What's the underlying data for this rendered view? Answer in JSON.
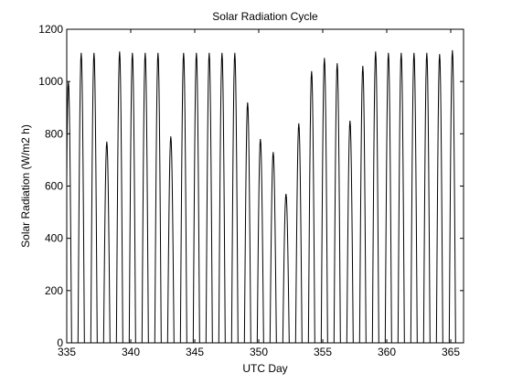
{
  "chart_data": {
    "type": "line",
    "title": "Solar Radiation Cycle",
    "xlabel": "UTC Day",
    "ylabel": "Solar Radiation (W/m2 h)",
    "xlim": [
      335,
      366
    ],
    "ylim": [
      0,
      1200
    ],
    "xticks": [
      335,
      340,
      345,
      350,
      355,
      360,
      365
    ],
    "yticks": [
      0,
      200,
      400,
      600,
      800,
      1000,
      1200
    ],
    "grid": false,
    "line_color": "#000000",
    "series": [
      {
        "values": [
          {
            "day": 335,
            "peak": 1000
          },
          {
            "day": 336,
            "peak": 1110
          },
          {
            "day": 337,
            "peak": 1110
          },
          {
            "day": 338,
            "peak": 770
          },
          {
            "day": 339,
            "peak": 1115
          },
          {
            "day": 340,
            "peak": 1110
          },
          {
            "day": 341,
            "peak": 1110
          },
          {
            "day": 342,
            "peak": 1110
          },
          {
            "day": 343,
            "peak": 790
          },
          {
            "day": 344,
            "peak": 1110
          },
          {
            "day": 345,
            "peak": 1110
          },
          {
            "day": 346,
            "peak": 1110
          },
          {
            "day": 347,
            "peak": 1110
          },
          {
            "day": 348,
            "peak": 1110
          },
          {
            "day": 349,
            "peak": 920
          },
          {
            "day": 350,
            "peak": 780
          },
          {
            "day": 351,
            "peak": 730
          },
          {
            "day": 352,
            "peak": 570
          },
          {
            "day": 353,
            "peak": 840
          },
          {
            "day": 354,
            "peak": 1040
          },
          {
            "day": 355,
            "peak": 1090
          },
          {
            "day": 356,
            "peak": 1070
          },
          {
            "day": 357,
            "peak": 850
          },
          {
            "day": 358,
            "peak": 1060
          },
          {
            "day": 359,
            "peak": 1115
          },
          {
            "day": 360,
            "peak": 1110
          },
          {
            "day": 361,
            "peak": 1110
          },
          {
            "day": 362,
            "peak": 1110
          },
          {
            "day": 363,
            "peak": 1110
          },
          {
            "day": 364,
            "peak": 1105
          },
          {
            "day": 365,
            "peak": 1120
          }
        ]
      }
    ]
  }
}
